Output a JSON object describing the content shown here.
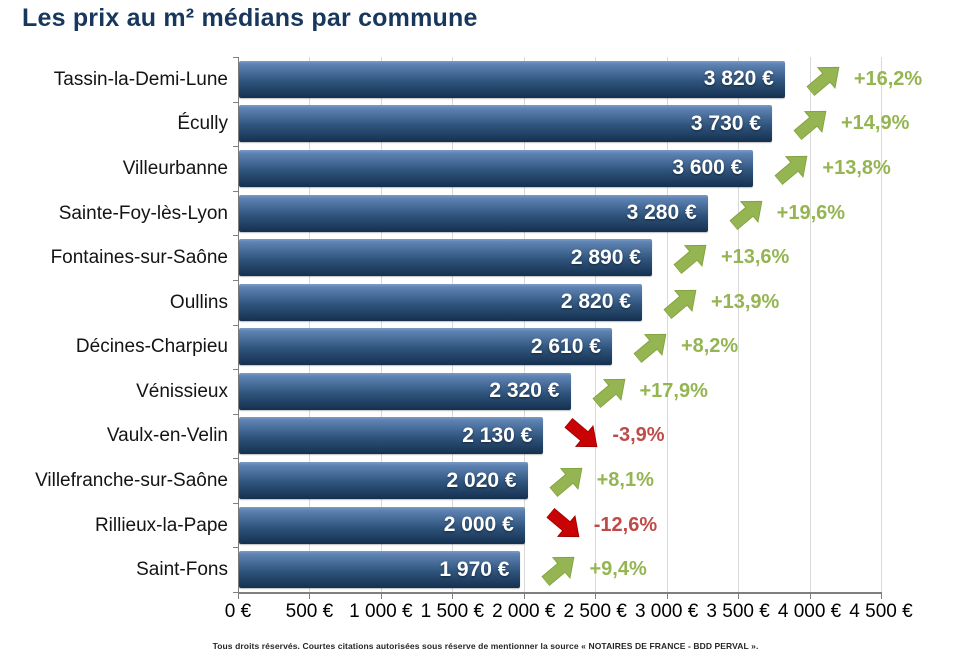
{
  "title": "Les prix au m² médians par commune",
  "footer": "Tous droits réservés. Courtes citations autorisées sous réserve de mentionner la source « NOTAIRES DE FRANCE - BDD PERVAL ».",
  "colors": {
    "title": "#17375D",
    "bar_top": "#5F84B5",
    "bar_mid": "#2F547C",
    "bar_bottom": "#15304F",
    "bar_highlight": "#7C9CC4",
    "positive": "#94B551",
    "positive_edge": "#82A340",
    "negative_arrow": "#C90303",
    "negative_edge": "#A00000",
    "negative_text": "#BE4B48",
    "gridline": "#D9D9D9",
    "axis": "#7F7F7F"
  },
  "chart_data": {
    "type": "bar",
    "orientation": "horizontal",
    "title": "Les prix au m² médians par commune",
    "xlabel": "",
    "ylabel": "",
    "xlim": [
      0,
      4500
    ],
    "grid": true,
    "legend": "none",
    "x_tick_values": [
      0,
      500,
      1000,
      1500,
      2000,
      2500,
      3000,
      3500,
      4000,
      4500
    ],
    "x_tick_labels": [
      "0 €",
      "500 €",
      "1 000 €",
      "1 500 €",
      "2 000 €",
      "2 500 €",
      "3 000 €",
      "3 500 €",
      "4 000 €",
      "4 500 €"
    ],
    "rows": [
      {
        "commune": "Tassin-la-Demi-Lune",
        "value": 3820,
        "value_label": "3 820 €",
        "change": 16.2,
        "change_label": "+16,2%",
        "direction": "up"
      },
      {
        "commune": "Écully",
        "value": 3730,
        "value_label": "3 730 €",
        "change": 14.9,
        "change_label": "+14,9%",
        "direction": "up"
      },
      {
        "commune": "Villeurbanne",
        "value": 3600,
        "value_label": "3 600 €",
        "change": 13.8,
        "change_label": "+13,8%",
        "direction": "up"
      },
      {
        "commune": "Sainte-Foy-lès-Lyon",
        "value": 3280,
        "value_label": "3 280 €",
        "change": 19.6,
        "change_label": "+19,6%",
        "direction": "up"
      },
      {
        "commune": "Fontaines-sur-Saône",
        "value": 2890,
        "value_label": "2 890 €",
        "change": 13.6,
        "change_label": "+13,6%",
        "direction": "up"
      },
      {
        "commune": "Oullins",
        "value": 2820,
        "value_label": "2 820 €",
        "change": 13.9,
        "change_label": "+13,9%",
        "direction": "up"
      },
      {
        "commune": "Décines-Charpieu",
        "value": 2610,
        "value_label": "2 610 €",
        "change": 8.2,
        "change_label": "+8,2%",
        "direction": "up"
      },
      {
        "commune": "Vénissieux",
        "value": 2320,
        "value_label": "2 320 €",
        "change": 17.9,
        "change_label": "+17,9%",
        "direction": "up"
      },
      {
        "commune": "Vaulx-en-Velin",
        "value": 2130,
        "value_label": "2 130 €",
        "change": -3.9,
        "change_label": "-3,9%",
        "direction": "down"
      },
      {
        "commune": "Villefranche-sur-Saône",
        "value": 2020,
        "value_label": "2 020 €",
        "change": 8.1,
        "change_label": "+8,1%",
        "direction": "up"
      },
      {
        "commune": "Rillieux-la-Pape",
        "value": 2000,
        "value_label": "2 000 €",
        "change": -12.6,
        "change_label": "-12,6%",
        "direction": "down"
      },
      {
        "commune": "Saint-Fons",
        "value": 1970,
        "value_label": "1 970 €",
        "change": 9.4,
        "change_label": "+9,4%",
        "direction": "up"
      }
    ]
  }
}
